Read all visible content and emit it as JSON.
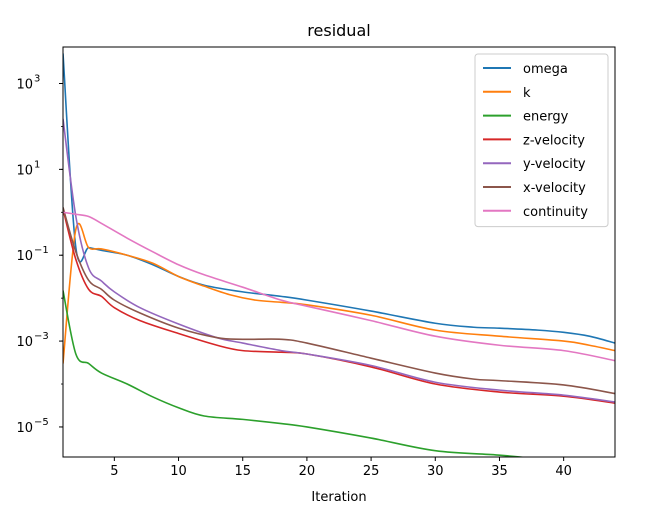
{
  "chart_data": {
    "type": "line",
    "title": "residual",
    "xlabel": "Iteration",
    "ylabel": "",
    "yscale": "log",
    "xlim": [
      1,
      44
    ],
    "ylim_exp": [
      -5.7,
      3.85
    ],
    "xticks": [
      5,
      10,
      15,
      20,
      25,
      30,
      35,
      40
    ],
    "yticks": [
      {
        "value": 1000,
        "base": "10",
        "exp": "3"
      },
      {
        "value": 10,
        "base": "10",
        "exp": "1"
      },
      {
        "value": 0.1,
        "base": "10",
        "exp": "−1"
      },
      {
        "value": 0.001,
        "base": "10",
        "exp": "−3"
      },
      {
        "value": 1e-05,
        "base": "10",
        "exp": "−5"
      }
    ],
    "grid": false,
    "legend_position": "top-right",
    "series": [
      {
        "name": "omega",
        "color": "#1f77b4",
        "x": [
          1,
          2,
          3,
          4,
          6,
          8,
          10,
          12,
          15,
          18,
          20,
          25,
          30,
          33,
          35,
          38,
          40,
          42,
          44
        ],
        "y": [
          5000,
          0.15,
          0.15,
          0.13,
          0.1,
          0.06,
          0.032,
          0.02,
          0.014,
          0.011,
          0.009,
          0.005,
          0.0026,
          0.0021,
          0.002,
          0.0018,
          0.0016,
          0.0013,
          0.0009
        ]
      },
      {
        "name": "k",
        "color": "#ff7f0e",
        "x": [
          1,
          2,
          3,
          4,
          6,
          8,
          10,
          12,
          14,
          16,
          18,
          20,
          25,
          30,
          35,
          40,
          42,
          44
        ],
        "y": [
          0.0003,
          0.4,
          0.15,
          0.14,
          0.1,
          0.065,
          0.032,
          0.019,
          0.012,
          0.009,
          0.008,
          0.007,
          0.004,
          0.0018,
          0.0013,
          0.001,
          0.0008,
          0.0006
        ]
      },
      {
        "name": "energy",
        "color": "#2ca02c",
        "x": [
          1,
          2,
          3,
          4,
          6,
          8,
          10,
          12,
          15,
          18,
          20,
          25,
          30,
          35,
          38,
          40,
          42,
          44
        ],
        "y": [
          0.015,
          0.0005,
          0.0003,
          0.00018,
          0.0001,
          5e-05,
          2.8e-05,
          1.8e-05,
          1.5e-05,
          1.2e-05,
          1e-05,
          5.5e-06,
          2.8e-06,
          2.2e-06,
          1.8e-06,
          1.4e-06,
          1e-06,
          6.8e-07
        ]
      },
      {
        "name": "z-velocity",
        "color": "#d62728",
        "x": [
          1,
          2,
          3,
          4,
          5,
          7,
          10,
          13,
          15,
          18,
          20,
          25,
          30,
          35,
          40,
          44
        ],
        "y": [
          1.2,
          0.08,
          0.016,
          0.011,
          0.006,
          0.003,
          0.0015,
          0.0008,
          0.0006,
          0.00055,
          0.0005,
          0.00025,
          0.0001,
          6.5e-05,
          5.2e-05,
          3.6e-05
        ]
      },
      {
        "name": "y-velocity",
        "color": "#9467bd",
        "x": [
          1,
          2,
          3,
          4,
          5,
          7,
          10,
          13,
          15,
          18,
          20,
          25,
          30,
          35,
          40,
          44
        ],
        "y": [
          150,
          0.8,
          0.05,
          0.025,
          0.014,
          0.006,
          0.0025,
          0.0012,
          0.0009,
          0.0006,
          0.0005,
          0.00027,
          0.00011,
          7.2e-05,
          5.5e-05,
          3.8e-05
        ]
      },
      {
        "name": "x-velocity",
        "color": "#8c564b",
        "x": [
          1,
          2,
          3,
          4,
          5,
          7,
          10,
          13,
          15,
          18,
          20,
          25,
          30,
          33,
          35,
          40,
          44
        ],
        "y": [
          1.3,
          0.12,
          0.026,
          0.016,
          0.009,
          0.0045,
          0.002,
          0.0012,
          0.0011,
          0.0011,
          0.0009,
          0.0004,
          0.00018,
          0.00013,
          0.00012,
          9.5e-05,
          6e-05
        ]
      },
      {
        "name": "continuity",
        "color": "#e377c2",
        "x": [
          1,
          2,
          3,
          4,
          6,
          8,
          10,
          12,
          15,
          18,
          20,
          25,
          30,
          35,
          40,
          44
        ],
        "y": [
          1.0,
          0.9,
          0.8,
          0.55,
          0.25,
          0.12,
          0.06,
          0.035,
          0.018,
          0.009,
          0.0065,
          0.003,
          0.0013,
          0.0008,
          0.0006,
          0.00035
        ]
      }
    ]
  }
}
